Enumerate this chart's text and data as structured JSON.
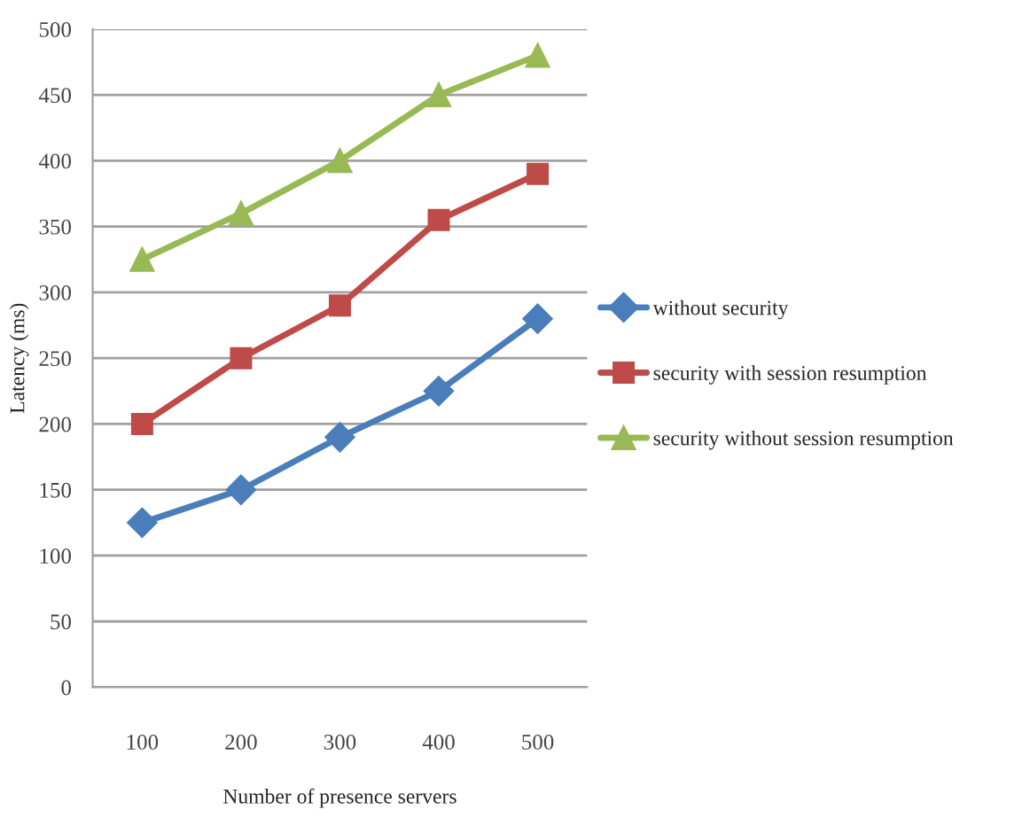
{
  "chart_data": {
    "type": "line",
    "xlabel": "Number of presence servers",
    "ylabel": "Latency (ms)",
    "categories": [
      "100",
      "200",
      "300",
      "400",
      "500"
    ],
    "series": [
      {
        "name": "without security",
        "color": "#4a7ebb",
        "marker": "diamond",
        "values": [
          125,
          150,
          190,
          225,
          280
        ]
      },
      {
        "name": "security with session resumption",
        "color": "#be4b48",
        "marker": "square",
        "values": [
          200,
          250,
          290,
          355,
          390
        ]
      },
      {
        "name": "security without session resumption",
        "color": "#98b954",
        "marker": "triangle",
        "values": [
          325,
          360,
          400,
          450,
          480
        ]
      }
    ],
    "ylim": [
      0,
      500
    ],
    "yticks": [
      0,
      50,
      100,
      150,
      200,
      250,
      300,
      350,
      400,
      450,
      500
    ],
    "grid": "y",
    "legend": "right"
  }
}
